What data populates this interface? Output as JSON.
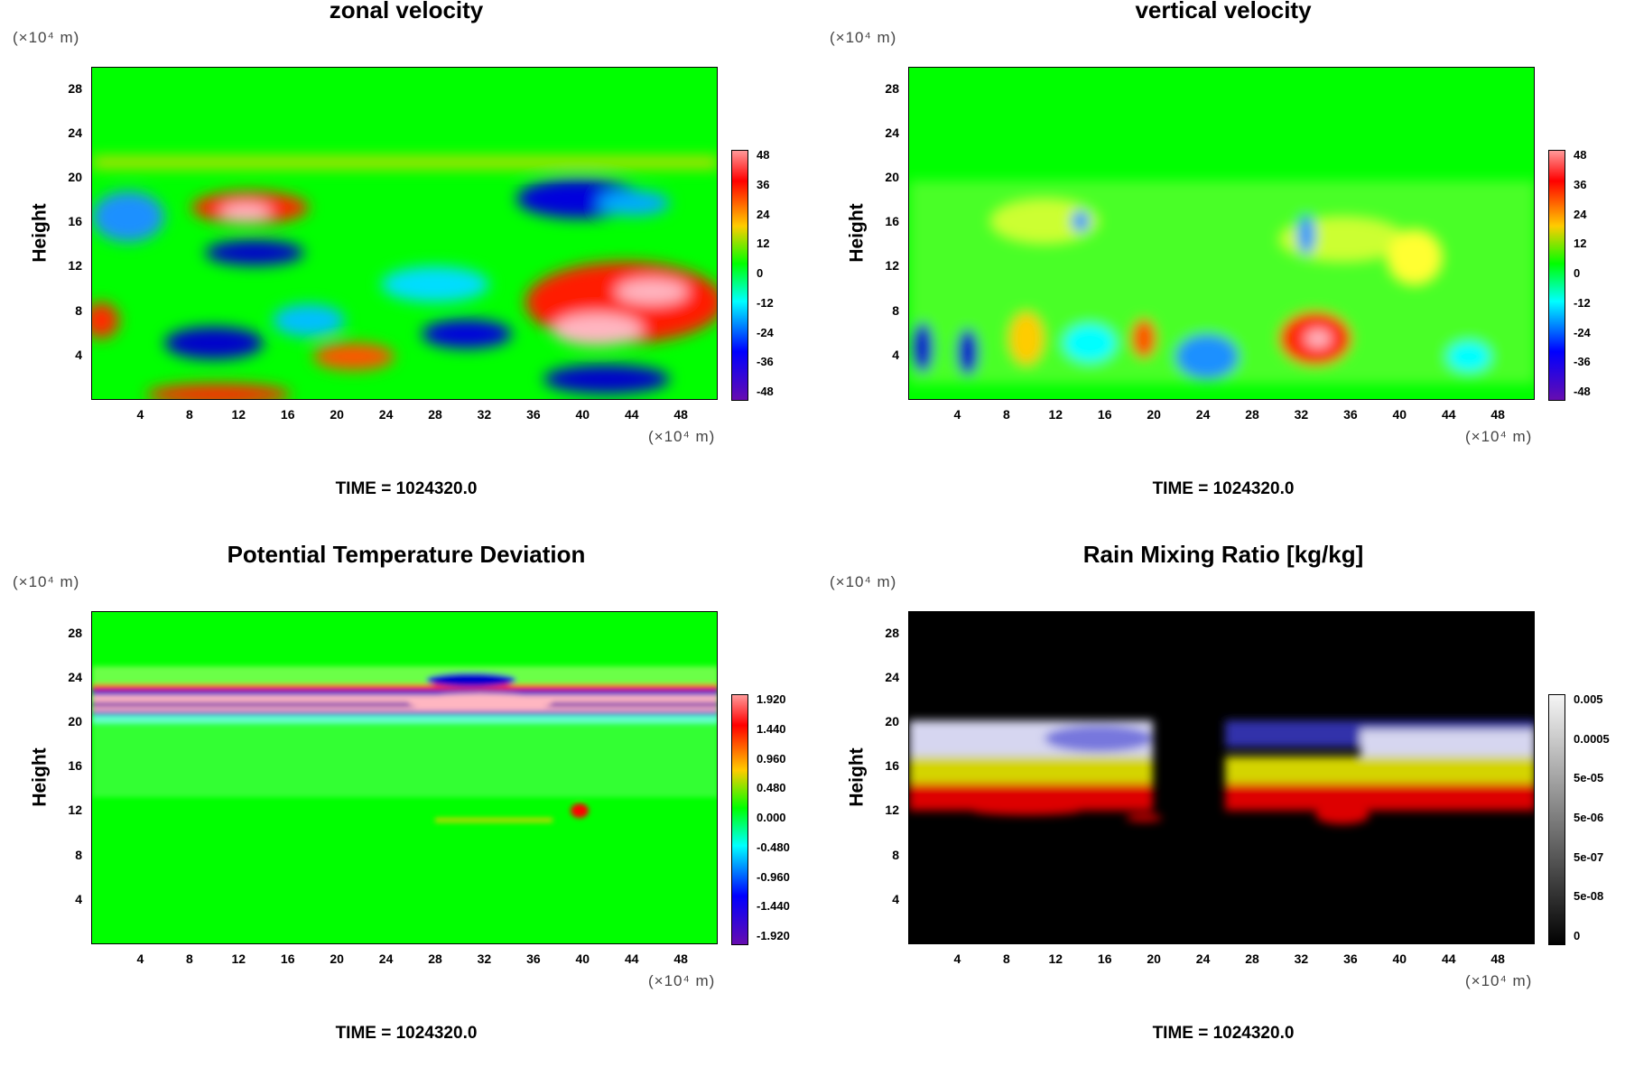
{
  "panels": [
    {
      "title": "zonal velocity",
      "yunit": "(×10⁴ m)",
      "xunit": "(×10⁴ m)",
      "ylabel": "Height",
      "yticks": [
        "28",
        "24",
        "20",
        "16",
        "12",
        "8",
        "4"
      ],
      "xticks": [
        "4",
        "8",
        "12",
        "16",
        "20",
        "24",
        "28",
        "32",
        "36",
        "40",
        "44",
        "48"
      ],
      "colorbar": [
        "48",
        "36",
        "24",
        "12",
        "0",
        "-12",
        "-24",
        "-36",
        "-48"
      ],
      "time": "TIME = 1024320.0"
    },
    {
      "title": "vertical velocity",
      "yunit": "(×10⁴ m)",
      "xunit": "(×10⁴ m)",
      "ylabel": "Height",
      "yticks": [
        "28",
        "24",
        "20",
        "16",
        "12",
        "8",
        "4"
      ],
      "xticks": [
        "4",
        "8",
        "12",
        "16",
        "20",
        "24",
        "28",
        "32",
        "36",
        "40",
        "44",
        "48"
      ],
      "colorbar": [
        "48",
        "36",
        "24",
        "12",
        "0",
        "-12",
        "-24",
        "-36",
        "-48"
      ],
      "time": "TIME = 1024320.0"
    },
    {
      "title": "Potential Temperature Deviation",
      "yunit": "(×10⁴ m)",
      "xunit": "(×10⁴ m)",
      "ylabel": "Height",
      "yticks": [
        "28",
        "24",
        "20",
        "16",
        "12",
        "8",
        "4"
      ],
      "xticks": [
        "4",
        "8",
        "12",
        "16",
        "20",
        "24",
        "28",
        "32",
        "36",
        "40",
        "44",
        "48"
      ],
      "colorbar": [
        "1.920",
        "1.440",
        "0.960",
        "0.480",
        "0.000",
        "-0.480",
        "-0.960",
        "-1.440",
        "-1.920"
      ],
      "time": "TIME = 1024320.0"
    },
    {
      "title": "Rain Mixing Ratio [kg/kg]",
      "yunit": "(×10⁴ m)",
      "xunit": "(×10⁴ m)",
      "ylabel": "Height",
      "yticks": [
        "28",
        "24",
        "20",
        "16",
        "12",
        "8",
        "4"
      ],
      "xticks": [
        "4",
        "8",
        "12",
        "16",
        "20",
        "24",
        "28",
        "32",
        "36",
        "40",
        "44",
        "48"
      ],
      "colorbar": [
        "0.005",
        "0.0005",
        "5e-05",
        "5e-06",
        "5e-07",
        "5e-08",
        "0"
      ],
      "time": "TIME = 1024320.0"
    }
  ],
  "chart_data": [
    {
      "type": "heatmap",
      "title": "zonal velocity",
      "ylabel": "Height",
      "xlim": [
        0,
        51
      ],
      "ylim": [
        0,
        30
      ],
      "colorbar": [
        48,
        36,
        24,
        12,
        0,
        -12,
        -24,
        -36,
        -48
      ],
      "time": "TIME = 1024320.0"
    },
    {
      "type": "heatmap",
      "title": "vertical velocity",
      "ylabel": "Height",
      "xlim": [
        0,
        51
      ],
      "ylim": [
        0,
        30
      ],
      "colorbar": [
        48,
        36,
        24,
        12,
        0,
        -12,
        -24,
        -36,
        -48
      ],
      "time": "TIME = 1024320.0"
    },
    {
      "type": "heatmap",
      "title": "Potential Temperature Deviation",
      "ylabel": "Height",
      "xlim": [
        0,
        51
      ],
      "ylim": [
        0,
        30
      ],
      "colorbar": [
        1.92,
        1.44,
        0.96,
        0.48,
        0,
        -0.48,
        -0.96,
        -1.44,
        -1.92
      ],
      "time": "TIME = 1024320.0"
    },
    {
      "type": "heatmap",
      "title": "Rain Mixing Ratio [kg/kg]",
      "ylabel": "Height",
      "xlim": [
        0,
        51
      ],
      "ylim": [
        0,
        30
      ],
      "colorbar": [
        0.005,
        0.0005,
        5e-05,
        5e-06,
        5e-07,
        5e-08,
        0
      ],
      "time": "TIME = 1024320.0"
    }
  ]
}
